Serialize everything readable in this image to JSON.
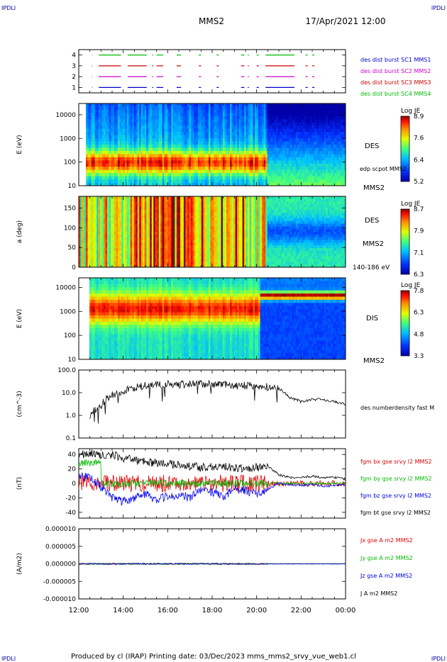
{
  "header": {
    "corner_label": "IPDLI",
    "spacecraft": "MMS2",
    "datetime": "17/Apr/2021 12:00",
    "footer_text": "Produced by cl (IRAP)   Printing date: 03/Dec/2023   mms_mms2_srvy_vue_web1.cl"
  },
  "colors": {
    "mms1": "#0000cc",
    "mms2": "#cc00cc",
    "mms3": "#cc0000",
    "mms4": "#00bb00",
    "bx": "#dd0000",
    "by": "#00bb00",
    "bz": "#0000ee",
    "bt": "#000000"
  },
  "chart_data": [
    {
      "type": "line",
      "panel": "burst",
      "yticks": [
        "1",
        "2",
        "3",
        "4"
      ],
      "ylim": [
        0.5,
        4.5
      ],
      "legend": [
        "des dist burst SC1 MMS1",
        "des dist burst SC2 MMS2",
        "des dist burst SC3 MMS3",
        "des dist burst SC4 MMS4"
      ],
      "segments": [
        [
          0.6,
          0.62
        ],
        [
          0.9,
          1.9
        ],
        [
          2.2,
          3.0
        ],
        [
          3.0,
          3.06
        ],
        [
          3.3,
          3.35
        ],
        [
          3.5,
          3.8
        ],
        [
          4.4,
          4.6
        ],
        [
          5.4,
          5.5
        ],
        [
          6.2,
          6.3
        ],
        [
          7.3,
          7.45
        ],
        [
          7.6,
          7.65
        ],
        [
          8.0,
          8.1
        ],
        [
          8.4,
          9.7
        ],
        [
          10.2,
          10.3
        ],
        [
          10.5,
          10.6
        ]
      ]
    },
    {
      "type": "heatmap",
      "panel": "des-energy",
      "ylabel": "E (eV)",
      "yscale": "log",
      "ylim": [
        10,
        30000
      ],
      "yticks": [
        "10",
        "100",
        "1000",
        "10000"
      ],
      "right_labels": [
        "DES",
        "edp scpot MMS2",
        "MMS2"
      ],
      "colorbar": {
        "title": "Log JE",
        "ticks": [
          "8.9",
          "7.6",
          "6.4",
          "5.2"
        ]
      }
    },
    {
      "type": "heatmap",
      "panel": "des-pitch",
      "ylabel": "a (deg)",
      "ylim": [
        0,
        180
      ],
      "yticks": [
        "0",
        "50",
        "100",
        "150"
      ],
      "right_labels": [
        "DES",
        "MMS2",
        "140-186 eV"
      ],
      "colorbar": {
        "title": "Log JE",
        "ticks": [
          "8.7",
          "7.9",
          "7.1",
          "6.3"
        ]
      }
    },
    {
      "type": "heatmap",
      "panel": "dis-energy",
      "ylabel": "E (eV)",
      "yscale": "log",
      "ylim": [
        10,
        25000
      ],
      "yticks": [
        "10",
        "100",
        "1000",
        "10000"
      ],
      "right_labels": [
        "DIS",
        "MMS2"
      ],
      "colorbar": {
        "title": "Log JE",
        "ticks": [
          "7.8",
          "6.3",
          "4.8",
          "3.3"
        ]
      }
    },
    {
      "type": "line",
      "panel": "density",
      "ylabel": "(cm^-3)",
      "yscale": "log",
      "ylim": [
        0.1,
        100
      ],
      "yticks": [
        "0.1",
        "1.0",
        "10.0",
        "100.0"
      ],
      "legend": [
        "des numberdensity fast M"
      ],
      "x": [
        0.5,
        1.0,
        1.5,
        2.0,
        2.5,
        3.0,
        3.5,
        4.0,
        4.5,
        5.0,
        5.5,
        6.0,
        6.5,
        7.0,
        7.5,
        8.0,
        8.5,
        9.0,
        9.5,
        10.0,
        10.5,
        11.0,
        11.5,
        12.0
      ],
      "values": [
        0.9,
        2.5,
        8,
        12,
        16,
        20,
        22,
        23,
        22,
        24,
        25,
        24,
        22,
        20,
        20,
        19,
        18,
        15,
        6,
        4,
        5,
        5,
        4,
        3
      ]
    },
    {
      "type": "line",
      "panel": "magnetic-field",
      "ylabel": "(nT)",
      "ylim": [
        -48,
        48
      ],
      "yticks": [
        "-40",
        "-20",
        "0",
        "20",
        "40"
      ],
      "series": [
        {
          "name": "fgm bx gse srvy l2 MMS2",
          "key": "bx"
        },
        {
          "name": "fgm by gse srvy l2 MMS2",
          "key": "by"
        },
        {
          "name": "fgm bz gse srvy l2 MMS2",
          "key": "bz"
        },
        {
          "name": "fgm bt gse srvy l2 MMS2",
          "key": "bt"
        }
      ],
      "x": [
        0,
        0.5,
        1.0,
        1.5,
        2.0,
        2.5,
        3.0,
        3.5,
        4.0,
        4.5,
        5.0,
        5.5,
        6.0,
        6.5,
        7.0,
        7.5,
        8.0,
        8.5,
        9.0,
        9.5,
        10.0,
        10.5,
        11.0,
        11.5,
        12.0
      ],
      "bt": [
        40,
        42,
        38,
        40,
        35,
        32,
        30,
        28,
        27,
        25,
        24,
        22,
        22,
        24,
        22,
        20,
        22,
        24,
        12,
        8,
        8,
        10,
        8,
        8,
        6
      ],
      "bz": [
        10,
        8,
        -5,
        -20,
        -25,
        -20,
        -15,
        -22,
        -18,
        -15,
        -20,
        -10,
        -12,
        -18,
        -8,
        -10,
        -15,
        -8,
        0,
        -2,
        -3,
        -2,
        -4,
        -3,
        -2
      ]
    },
    {
      "type": "line",
      "panel": "current-density",
      "ylabel": "(A/m2)",
      "ylim": [
        -1e-05,
        1e-05
      ],
      "yticks": [
        "-0.000010",
        "-0.000005",
        "0.000000",
        "0.000005",
        "0.000010"
      ],
      "series": [
        {
          "name": "Jx gse A m2 MMS2",
          "key": "bx"
        },
        {
          "name": "Jy gse A m2 MMS2",
          "key": "by"
        },
        {
          "name": "Jz gse A m2 MMS2",
          "key": "bz"
        },
        {
          "name": "J A m2 MMS2",
          "key": "bt"
        }
      ]
    }
  ],
  "xaxis": {
    "ticks": [
      "12:00",
      "14:00",
      "16:00",
      "18:00",
      "20:00",
      "22:00",
      "00:00"
    ]
  }
}
